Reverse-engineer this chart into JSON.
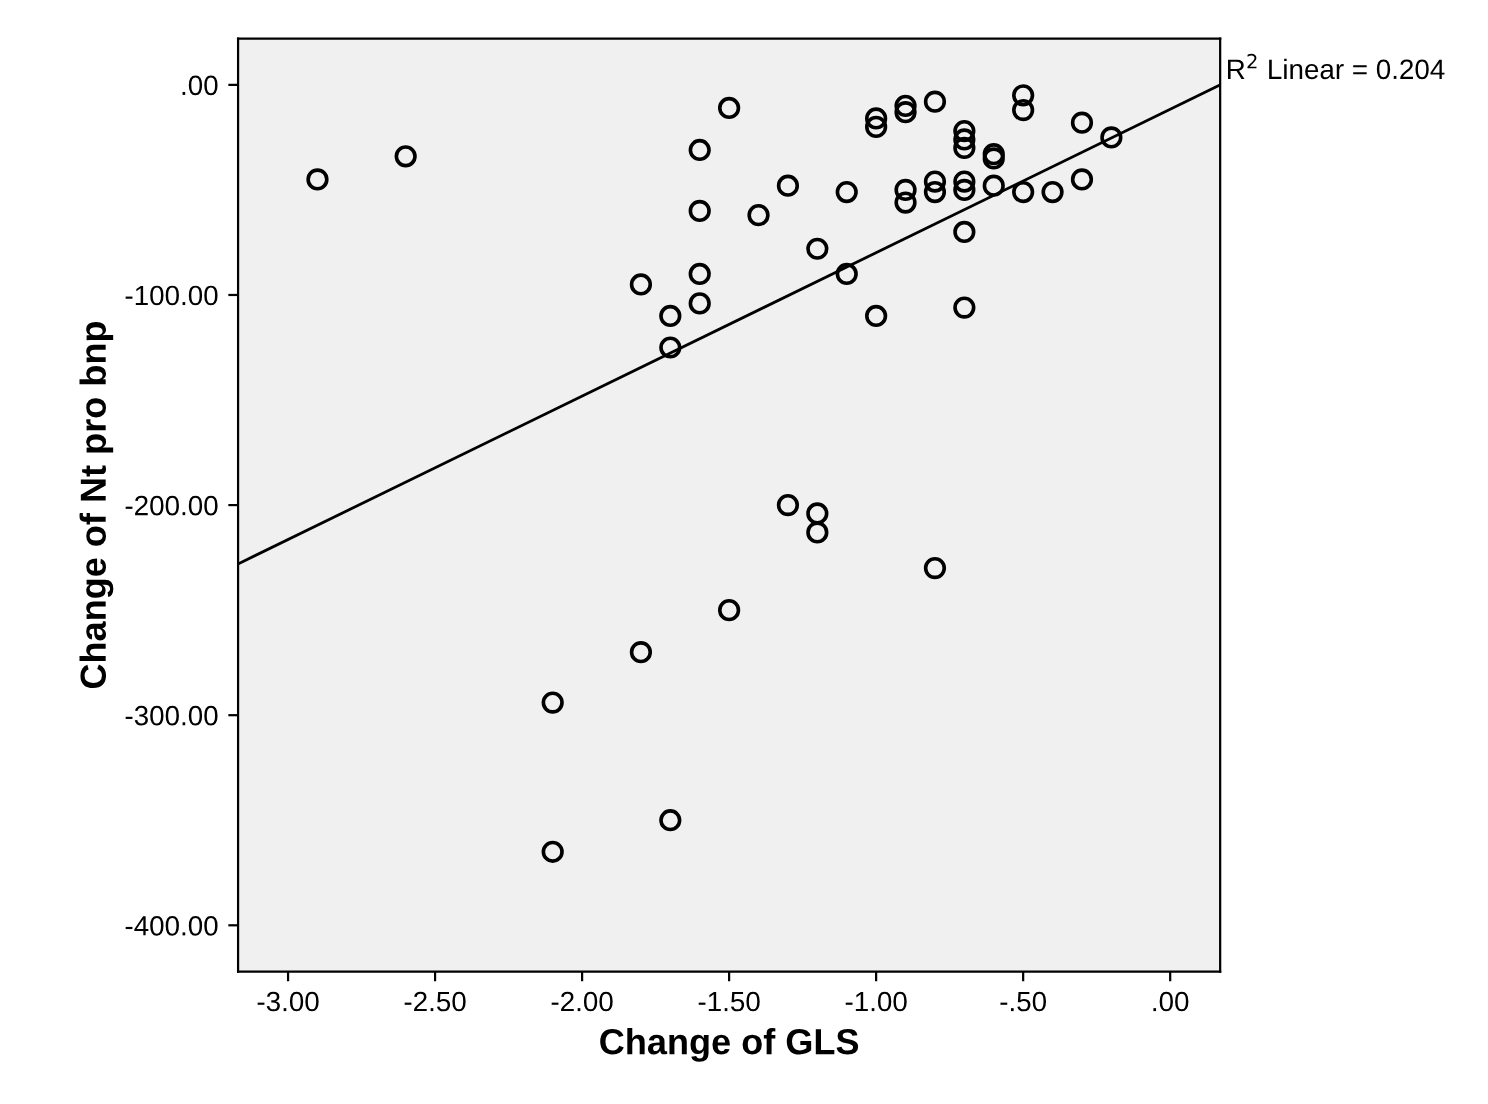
{
  "chart_data": {
    "type": "scatter",
    "xlabel": "Change of GLS",
    "ylabel": "Change of Nt pro bnp",
    "xlim": [
      -3.17,
      0.17
    ],
    "ylim": [
      -422,
      22
    ],
    "xticks": [
      {
        "value": -3,
        "label": "-3.00"
      },
      {
        "value": -2.5,
        "label": "-2.50"
      },
      {
        "value": -2,
        "label": "-2.00"
      },
      {
        "value": -1.5,
        "label": "-1.50"
      },
      {
        "value": -1,
        "label": "-1.00"
      },
      {
        "value": -0.5,
        "label": "-.50"
      },
      {
        "value": 0,
        "label": ".00"
      }
    ],
    "yticks": [
      {
        "value": 0,
        "label": ".00"
      },
      {
        "value": -100,
        "label": "-100.00"
      },
      {
        "value": -200,
        "label": "-200.00"
      },
      {
        "value": -300,
        "label": "-300.00"
      },
      {
        "value": -400,
        "label": "-400.00"
      }
    ],
    "grid": false,
    "marker": "circle",
    "series": [
      {
        "color": "#000000",
        "x": [
          -2.9,
          -2.6,
          -2.1,
          -2.1,
          -1.8,
          -1.8,
          -1.7,
          -1.7,
          -1.7,
          -1.6,
          -1.6,
          -1.6,
          -1.6,
          -1.5,
          -1.5,
          -1.4,
          -1.3,
          -1.3,
          -1.2,
          -1.2,
          -1.2,
          -1.1,
          -1.1,
          -1.0,
          -1.0,
          -1.0,
          -0.9,
          -0.9,
          -0.9,
          -0.9,
          -0.8,
          -0.8,
          -0.8,
          -0.8,
          -0.7,
          -0.7,
          -0.7,
          -0.7,
          -0.7,
          -0.7,
          -0.7,
          -0.6,
          -0.6,
          -0.6,
          -0.5,
          -0.5,
          -0.5,
          -0.4,
          -0.3,
          -0.3,
          -0.2
        ],
        "values": [
          -45,
          -34,
          -294,
          -365,
          -95,
          -270,
          -110,
          -125,
          -350,
          -31,
          -60,
          -90,
          -104,
          -11,
          -250,
          -62,
          -48,
          -200,
          -78,
          -204,
          -213,
          -51,
          -90,
          -16,
          -20,
          -110,
          -10,
          -13,
          -50,
          -56,
          -8,
          -46,
          -51,
          -230,
          -22,
          -26,
          -30,
          -46,
          -50,
          -70,
          -106,
          -33,
          -35,
          -48,
          -5,
          -12,
          -51,
          -51,
          -18,
          -45,
          -25
        ]
      },
      {
        "type": "line",
        "color": "#000000",
        "x": [
          -3.17,
          0.17
        ],
        "values": [
          -228,
          0
        ],
        "line_style": "solid",
        "marker": "none"
      }
    ],
    "annotations": [
      {
        "text": "R$^{2}$ Linear = 0.204",
        "x": 0.17,
        "y": 0
      }
    ]
  }
}
